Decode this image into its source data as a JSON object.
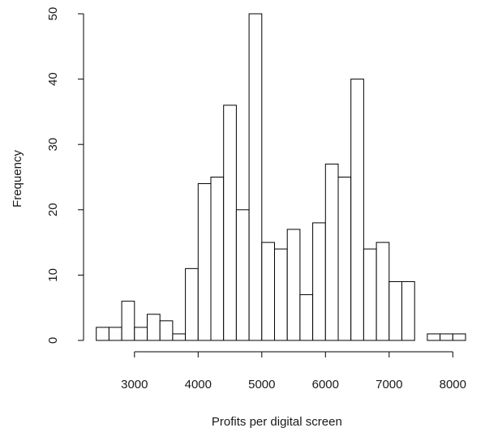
{
  "chart_data": {
    "type": "bar",
    "subtype": "histogram",
    "title": "",
    "xlabel": "Profits per digital screen",
    "ylabel": "Frequency",
    "bin_width": 200,
    "x_start": 2400,
    "bins": [
      {
        "from": 2400,
        "to": 2600,
        "count": 2
      },
      {
        "from": 2600,
        "to": 2800,
        "count": 2
      },
      {
        "from": 2800,
        "to": 3000,
        "count": 6
      },
      {
        "from": 3000,
        "to": 3200,
        "count": 2
      },
      {
        "from": 3200,
        "to": 3400,
        "count": 4
      },
      {
        "from": 3400,
        "to": 3600,
        "count": 3
      },
      {
        "from": 3600,
        "to": 3800,
        "count": 1
      },
      {
        "from": 3800,
        "to": 4000,
        "count": 11
      },
      {
        "from": 4000,
        "to": 4200,
        "count": 24
      },
      {
        "from": 4200,
        "to": 4400,
        "count": 25
      },
      {
        "from": 4400,
        "to": 4600,
        "count": 36
      },
      {
        "from": 4600,
        "to": 4800,
        "count": 20
      },
      {
        "from": 4800,
        "to": 5000,
        "count": 50
      },
      {
        "from": 5000,
        "to": 5200,
        "count": 15
      },
      {
        "from": 5200,
        "to": 5400,
        "count": 14
      },
      {
        "from": 5400,
        "to": 5600,
        "count": 17
      },
      {
        "from": 5600,
        "to": 5800,
        "count": 7
      },
      {
        "from": 5800,
        "to": 6000,
        "count": 18
      },
      {
        "from": 6000,
        "to": 6200,
        "count": 27
      },
      {
        "from": 6200,
        "to": 6400,
        "count": 25
      },
      {
        "from": 6400,
        "to": 6600,
        "count": 40
      },
      {
        "from": 6600,
        "to": 6800,
        "count": 14
      },
      {
        "from": 6800,
        "to": 7000,
        "count": 15
      },
      {
        "from": 7000,
        "to": 7200,
        "count": 9
      },
      {
        "from": 7200,
        "to": 7400,
        "count": 9
      },
      {
        "from": 7400,
        "to": 7600,
        "count": 0
      },
      {
        "from": 7600,
        "to": 7800,
        "count": 1
      },
      {
        "from": 7800,
        "to": 8000,
        "count": 1
      },
      {
        "from": 8000,
        "to": 8200,
        "count": 1
      }
    ],
    "xlim": [
      2400,
      8200
    ],
    "ylim": [
      0,
      50
    ],
    "x_ticks": [
      3000,
      4000,
      5000,
      6000,
      7000,
      8000
    ],
    "x_tick_labels": [
      "3000",
      "4000",
      "5000",
      "6000",
      "7000",
      "8000"
    ],
    "y_ticks": [
      0,
      10,
      20,
      30,
      40,
      50
    ],
    "y_tick_labels": [
      "0",
      "10",
      "20",
      "30",
      "40",
      "50"
    ],
    "grid": false,
    "legend": "none",
    "colors": {
      "bar_fill": "#ffffff",
      "bar_stroke": "#000000",
      "axis": "#000000",
      "text": "#1a1a1a"
    }
  }
}
